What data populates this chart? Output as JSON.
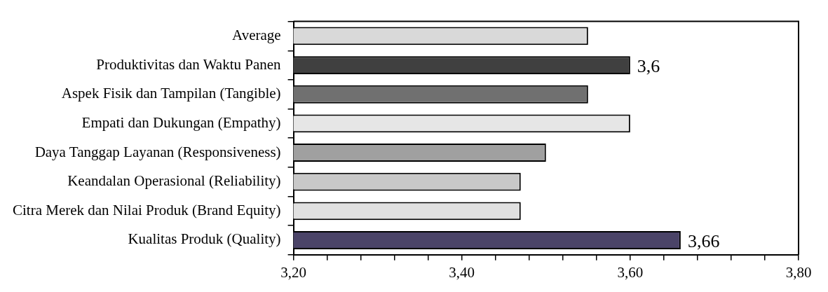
{
  "chart_data": {
    "type": "bar",
    "orientation": "horizontal",
    "categories": [
      "Average",
      "Produktivitas dan Waktu Panen",
      "Aspek Fisik dan Tampilan (Tangible)",
      "Empati dan Dukungan (Empathy)",
      "Daya Tanggap Layanan (Responsiveness)",
      "Keandalan Operasional (Reliability)",
      "Citra Merek dan Nilai Produk (Brand Equity)",
      "Kualitas Produk (Quality)"
    ],
    "values": [
      3.55,
      3.6,
      3.55,
      3.6,
      3.5,
      3.47,
      3.47,
      3.66
    ],
    "value_labels": [
      null,
      "3,6",
      null,
      null,
      null,
      null,
      null,
      "3,66"
    ],
    "colors": [
      "#d9d9d9",
      "#404040",
      "#707070",
      "#e6e6e6",
      "#a0a0a0",
      "#c8c8c8",
      "#e0e0e0",
      "#4b4468"
    ],
    "xlim": [
      3.2,
      3.8
    ],
    "xticks": [
      {
        "value": 3.2,
        "label": "3,20"
      },
      {
        "value": 3.24,
        "label": null
      },
      {
        "value": 3.28,
        "label": null
      },
      {
        "value": 3.32,
        "label": null
      },
      {
        "value": 3.36,
        "label": null
      },
      {
        "value": 3.4,
        "label": "3,40"
      },
      {
        "value": 3.44,
        "label": null
      },
      {
        "value": 3.48,
        "label": null
      },
      {
        "value": 3.52,
        "label": null
      },
      {
        "value": 3.56,
        "label": null
      },
      {
        "value": 3.6,
        "label": "3,60"
      },
      {
        "value": 3.64,
        "label": null
      },
      {
        "value": 3.68,
        "label": null
      },
      {
        "value": 3.72,
        "label": null
      },
      {
        "value": 3.76,
        "label": null
      },
      {
        "value": 3.8,
        "label": "3,80"
      }
    ],
    "grid": false,
    "legend": false
  }
}
